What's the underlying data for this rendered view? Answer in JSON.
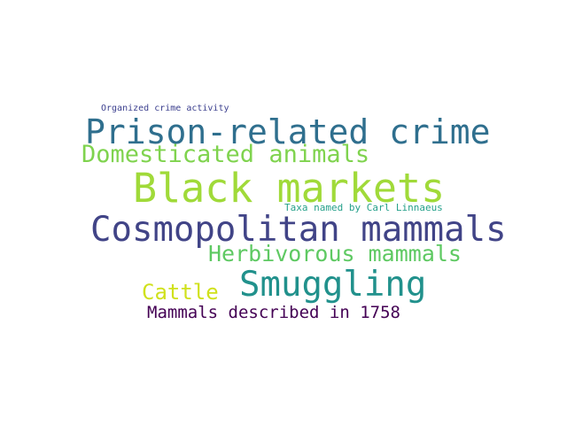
{
  "words": [
    {
      "text": "Organized crime activity",
      "color": "#3b3f8e"
    },
    {
      "text": "Prison-related crime",
      "color": "#2f6f8e"
    },
    {
      "text": "Domesticated animals",
      "color": "#7fd34e"
    },
    {
      "text": "Black markets",
      "color": "#a0da39"
    },
    {
      "text": "Taxa named by Carl Linnaeus",
      "color": "#25a08a"
    },
    {
      "text": "Cosmopolitan mammals",
      "color": "#414487"
    },
    {
      "text": "Herbivorous mammals",
      "color": "#5ec962"
    },
    {
      "text": "Smuggling",
      "color": "#21918c"
    },
    {
      "text": "Cattle",
      "color": "#d0e11c"
    },
    {
      "text": "Mammals described in 1758",
      "color": "#440154"
    }
  ]
}
